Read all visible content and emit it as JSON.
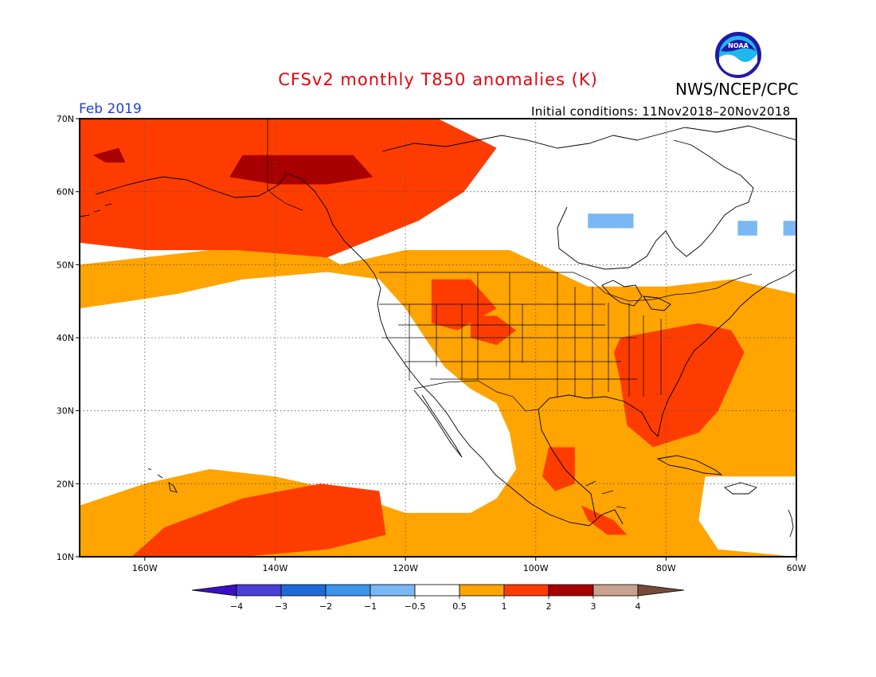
{
  "header": {
    "title": "CFSv2 monthly T850 anomalies (K)",
    "org": "NWS/NCEP/CPC",
    "period": "Feb 2019",
    "init_conditions": "Initial conditions: 11Nov2018–20Nov2018",
    "logo_text": "NOAA"
  },
  "map": {
    "lat_range": [
      10,
      70
    ],
    "lon_range": [
      -170,
      -60
    ],
    "lat_ticks": [
      "10N",
      "20N",
      "30N",
      "40N",
      "50N",
      "60N",
      "70N"
    ],
    "lon_ticks": [
      "160W",
      "140W",
      "120W",
      "100W",
      "80W",
      "60W"
    ],
    "gridlines": "dotted"
  },
  "colorbar": {
    "labels": [
      "−4",
      "−3",
      "−2",
      "−1",
      "−0.5",
      "0.5",
      "1",
      "2",
      "3",
      "4"
    ],
    "colors": [
      "#3a10c4",
      "#4a40d8",
      "#1e6ad8",
      "#3c94ec",
      "#7ab8f4",
      "#ffffff",
      "#ffa400",
      "#ff3c00",
      "#a80000",
      "#c8a290",
      "#7a4a38"
    ],
    "unit": "K"
  },
  "chart_data": {
    "type": "heatmap",
    "title": "CFSv2 monthly T850 anomalies (K)",
    "variable": "T850 anomaly",
    "unit": "K",
    "valid": "Feb 2019",
    "lat_range": [
      10,
      70
    ],
    "lon_range": [
      -170,
      -60
    ],
    "levels": [
      -4,
      -3,
      -2,
      -1,
      -0.5,
      0.5,
      1,
      2,
      3,
      4
    ],
    "regions": [
      {
        "class": "0.5–1",
        "color": "#ffa400",
        "polygon": [
          [
            -170,
            50
          ],
          [
            -150,
            52
          ],
          [
            -140,
            55
          ],
          [
            -130,
            50
          ],
          [
            -120,
            52
          ],
          [
            -112,
            52
          ],
          [
            -100,
            52
          ],
          [
            -88,
            52
          ],
          [
            -80,
            50
          ],
          [
            -70,
            48
          ],
          [
            -60,
            46
          ],
          [
            -60,
            10
          ],
          [
            -170,
            10
          ]
        ]
      },
      {
        "class": "-0.5–0.5",
        "color": "#ffffff",
        "polygon": [
          [
            -170,
            44
          ],
          [
            -155,
            46
          ],
          [
            -145,
            48
          ],
          [
            -132,
            49
          ],
          [
            -124,
            48
          ],
          [
            -120,
            44
          ],
          [
            -117,
            40
          ],
          [
            -114,
            36
          ],
          [
            -110,
            33
          ],
          [
            -106,
            31
          ],
          [
            -104,
            27
          ],
          [
            -103,
            22
          ],
          [
            -106,
            18
          ],
          [
            -110,
            16
          ],
          [
            -120,
            16
          ],
          [
            -130,
            19
          ],
          [
            -140,
            21
          ],
          [
            -150,
            22
          ],
          [
            -160,
            20
          ],
          [
            -170,
            17
          ]
        ]
      },
      {
        "class": "-0.5–0.5",
        "color": "#ffffff",
        "polygon": [
          [
            -108,
            62
          ],
          [
            -100,
            66
          ],
          [
            -88,
            67
          ],
          [
            -78,
            68
          ],
          [
            -60,
            69
          ],
          [
            -60,
            52
          ],
          [
            -70,
            48
          ],
          [
            -80,
            47
          ],
          [
            -92,
            47
          ],
          [
            -104,
            52
          ],
          [
            -109,
            56
          ]
        ]
      },
      {
        "class": "-0.5–0.5",
        "color": "#ffffff",
        "polygon": [
          [
            -74,
            21
          ],
          [
            -66,
            21
          ],
          [
            -60,
            21
          ],
          [
            -60,
            10
          ],
          [
            -72,
            11
          ],
          [
            -75,
            15
          ]
        ]
      },
      {
        "class": "1–2",
        "color": "#ff3c00",
        "polygon": [
          [
            -170,
            70
          ],
          [
            -115,
            70
          ],
          [
            -106,
            66
          ],
          [
            -111,
            60
          ],
          [
            -118,
            56
          ],
          [
            -132,
            51
          ],
          [
            -146,
            52
          ],
          [
            -160,
            52
          ],
          [
            -170,
            53
          ]
        ]
      },
      {
        "class": "1–2",
        "color": "#ff3c00",
        "polygon": [
          [
            -116,
            48
          ],
          [
            -110,
            48
          ],
          [
            -106,
            44
          ],
          [
            -112,
            41
          ],
          [
            -116,
            42
          ]
        ]
      },
      {
        "class": "1–2",
        "color": "#ff3c00",
        "polygon": [
          [
            -110,
            43
          ],
          [
            -106,
            43
          ],
          [
            -103,
            41
          ],
          [
            -106,
            39
          ],
          [
            -110,
            40
          ]
        ]
      },
      {
        "class": "1–2",
        "color": "#ff3c00",
        "polygon": [
          [
            -87,
            40
          ],
          [
            -75,
            42
          ],
          [
            -70,
            41
          ],
          [
            -68,
            38
          ],
          [
            -70,
            34
          ],
          [
            -72,
            30
          ],
          [
            -75,
            27
          ],
          [
            -82,
            25
          ],
          [
            -86,
            28
          ],
          [
            -87,
            34
          ],
          [
            -88,
            38
          ]
        ]
      },
      {
        "class": "1–2",
        "color": "#ff3c00",
        "polygon": [
          [
            -162,
            10
          ],
          [
            -157,
            14
          ],
          [
            -145,
            18
          ],
          [
            -133,
            20
          ],
          [
            -124,
            19
          ],
          [
            -123,
            13
          ],
          [
            -132,
            11
          ],
          [
            -145,
            10
          ]
        ]
      },
      {
        "class": "1–2",
        "color": "#ff3c00",
        "polygon": [
          [
            -98,
            25
          ],
          [
            -94,
            25
          ],
          [
            -94,
            20
          ],
          [
            -97,
            19
          ],
          [
            -99,
            21
          ]
        ]
      },
      {
        "class": "1–2",
        "color": "#ff3c00",
        "polygon": [
          [
            -93,
            17
          ],
          [
            -88,
            15
          ],
          [
            -86,
            13
          ],
          [
            -89,
            13
          ],
          [
            -92,
            15
          ]
        ]
      },
      {
        "class": "2–3",
        "color": "#a80000",
        "polygon": [
          [
            -145,
            65
          ],
          [
            -128,
            65
          ],
          [
            -125,
            62
          ],
          [
            -132,
            61
          ],
          [
            -140,
            61
          ],
          [
            -147,
            62
          ]
        ]
      },
      {
        "class": "2–3",
        "color": "#a80000",
        "polygon": [
          [
            -168,
            65
          ],
          [
            -164,
            66
          ],
          [
            -163,
            64
          ],
          [
            -166,
            64
          ]
        ]
      },
      {
        "class": "-1–-0.5",
        "color": "#7ab8f4",
        "polygon": [
          [
            -92,
            57
          ],
          [
            -85,
            57
          ],
          [
            -85,
            55
          ],
          [
            -92,
            55
          ]
        ]
      },
      {
        "class": "-1–-0.5",
        "color": "#7ab8f4",
        "polygon": [
          [
            -69,
            56
          ],
          [
            -66,
            56
          ],
          [
            -66,
            54
          ],
          [
            -69,
            54
          ]
        ]
      },
      {
        "class": "-1–-0.5",
        "color": "#7ab8f4",
        "polygon": [
          [
            -62,
            56
          ],
          [
            -60,
            56
          ],
          [
            -60,
            54
          ],
          [
            -62,
            54
          ]
        ]
      }
    ]
  }
}
